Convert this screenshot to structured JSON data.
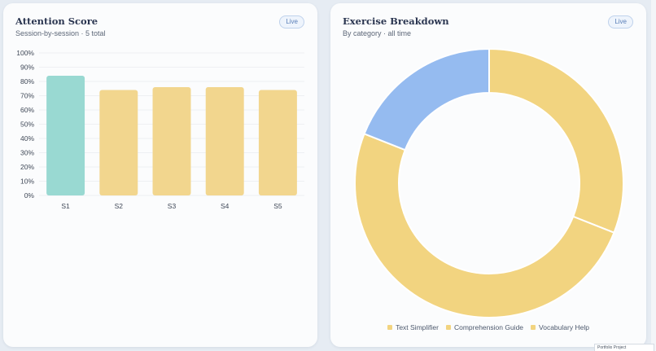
{
  "left_card": {
    "title": "Attention Score",
    "subtitle": "Session-by-session · 5 total",
    "badge": "Live"
  },
  "right_card": {
    "title": "Exercise Breakdown",
    "subtitle": "By category · all time",
    "badge": "Live"
  },
  "chart_data": [
    {
      "type": "bar",
      "categories": [
        "S1",
        "S2",
        "S3",
        "S4",
        "S5"
      ],
      "values": [
        84,
        74,
        76,
        76,
        74
      ],
      "ylim": [
        0,
        100
      ],
      "yticks": [
        "0%",
        "10%",
        "20%",
        "30%",
        "40%",
        "50%",
        "60%",
        "70%",
        "80%",
        "90%",
        "100%"
      ],
      "grid": true,
      "colors": [
        "#99d9d2",
        "#f2d68e",
        "#f2d68e",
        "#f2d68e",
        "#f2d68e"
      ]
    },
    {
      "type": "pie",
      "donut": true,
      "labels": [
        "Text Simplifier",
        "Comprehension Guide",
        "Vocabulary Help"
      ],
      "values": [
        31,
        50,
        19
      ],
      "colors": [
        "#f2d480",
        "#f2d480",
        "#95bbf0"
      ],
      "legend_colors": [
        "#f2d480",
        "#f2d480",
        "#f2d480"
      ],
      "legend": "bottom"
    }
  ],
  "thumbnail": {
    "label": "Portfolio Project"
  }
}
